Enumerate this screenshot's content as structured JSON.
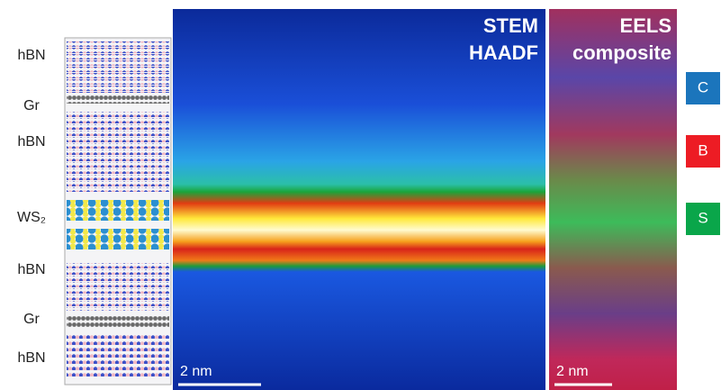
{
  "layer_labels": [
    "hBN",
    "Gr",
    "hBN",
    "WS₂",
    "hBN",
    "Gr",
    "hBN"
  ],
  "panels": [
    {
      "title_lines": [
        "STEM",
        "HAADF"
      ],
      "scale_bar": "2 nm"
    },
    {
      "title_lines": [
        "EELS",
        "composite"
      ],
      "scale_bar": "2 nm"
    }
  ],
  "elements": [
    {
      "label": "C",
      "color": "#1b75bc"
    },
    {
      "label": "B",
      "color": "#ed1c24"
    },
    {
      "label": "S",
      "color": "#0aa64a"
    }
  ]
}
